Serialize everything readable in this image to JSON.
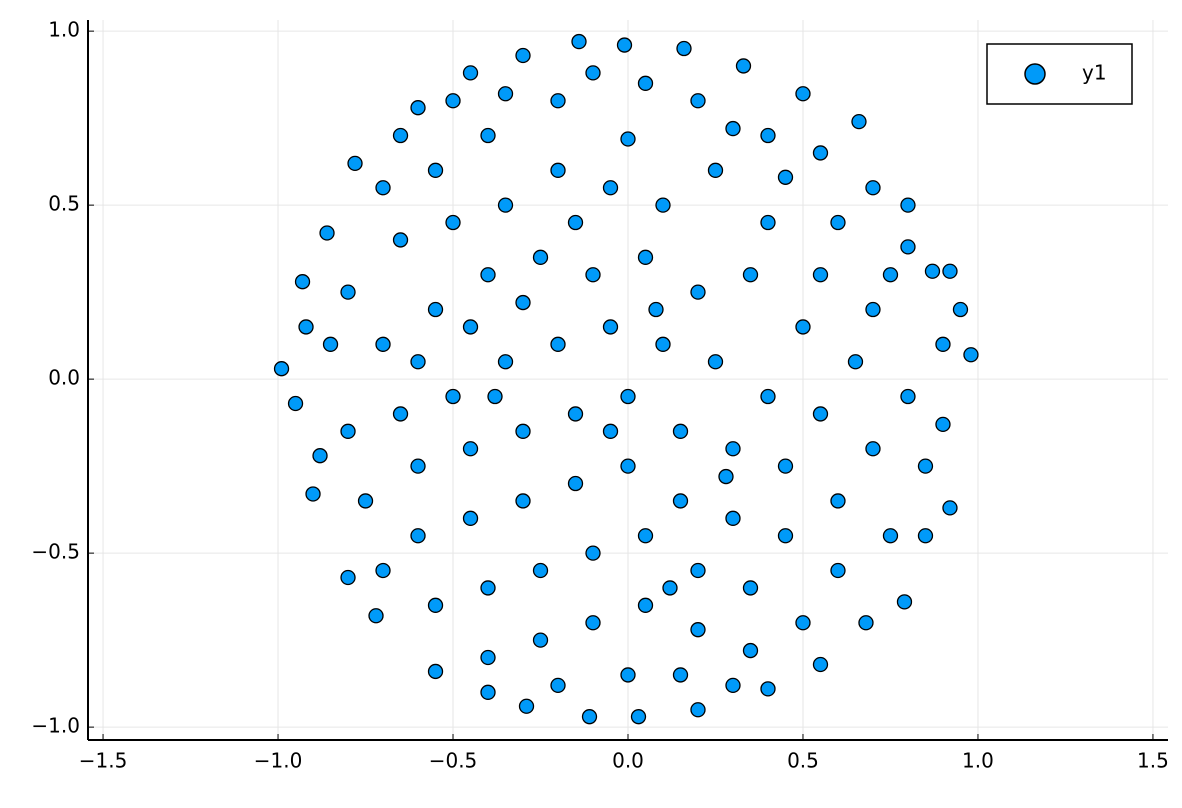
{
  "chart_data": {
    "type": "scatter",
    "xlim": [
      -1.543,
      1.543
    ],
    "ylim": [
      -1.037,
      1.032
    ],
    "xticks": [
      {
        "value": -1.5,
        "label": "−1.5"
      },
      {
        "value": -1.0,
        "label": "−1.0"
      },
      {
        "value": -0.5,
        "label": "−0.5"
      },
      {
        "value": 0,
        "label": "0.0"
      },
      0.5,
      {
        "value": 1.0,
        "label": "1.0"
      },
      1.5
    ],
    "yticks": [
      {
        "value": -1.0,
        "label": "−1.0"
      },
      {
        "value": -0.5,
        "label": "−0.5"
      },
      {
        "value": 0,
        "label": "0.0"
      },
      0.5,
      {
        "value": 1.0,
        "label": "1.0"
      }
    ],
    "grid": true,
    "legend": "top-right",
    "series": [
      {
        "name": "y1",
        "color": "#009af9",
        "x": [
          0.98,
          0.9,
          -0.99,
          -0.14,
          -0.01,
          0.03,
          -0.11,
          -0.29,
          0.8,
          0.87,
          0.79,
          -0.93,
          -0.95,
          -0.9,
          -0.8,
          -0.72,
          -0.55,
          -0.4,
          0.2,
          0.4,
          0.55,
          0.68,
          0.92,
          0.95,
          0.92,
          0.66,
          0.5,
          0.33,
          0.16,
          -0.3,
          -0.45,
          -0.6,
          -0.78,
          -0.86,
          -0.7,
          -0.55,
          -0.4,
          -0.2,
          0.0,
          0.2,
          0.4,
          0.55,
          0.7,
          0.8,
          0.7,
          0.55,
          0.4,
          0.25,
          0.1,
          -0.05,
          -0.2,
          -0.35,
          -0.5,
          -0.65,
          -0.8,
          -0.85,
          -0.7,
          -0.55,
          -0.4,
          -0.25,
          -0.1,
          0.05,
          0.2,
          0.35,
          0.5,
          0.65,
          0.8,
          0.85,
          0.7,
          0.55,
          0.4,
          0.25,
          0.1,
          -0.05,
          -0.2,
          -0.35,
          -0.5,
          -0.65,
          -0.8,
          -0.75,
          -0.6,
          -0.45,
          -0.3,
          -0.15,
          0.0,
          0.15,
          0.3,
          0.45,
          0.6,
          0.75,
          0.6,
          0.45,
          0.3,
          0.15,
          0.0,
          -0.15,
          -0.3,
          -0.45,
          -0.6,
          -0.7,
          -0.55,
          -0.4,
          -0.25,
          -0.1,
          0.05,
          0.2,
          0.35,
          0.5,
          0.35,
          0.2,
          0.05,
          -0.1,
          -0.25,
          -0.4,
          -0.2,
          0.0,
          0.15,
          0.3,
          -0.6,
          -0.45,
          -0.3,
          -0.15,
          0.05,
          -0.1,
          0.3,
          0.45,
          0.6,
          0.75,
          0.9,
          0.85,
          -0.88,
          -0.92,
          -0.65,
          -0.5,
          -0.35,
          0.08,
          -0.05,
          0.28,
          -0.38,
          0.12
        ],
        "values": [
          0.07,
          -0.13,
          0.03,
          0.97,
          0.96,
          -0.97,
          -0.97,
          -0.94,
          0.5,
          0.31,
          -0.64,
          0.28,
          -0.07,
          -0.33,
          -0.57,
          -0.68,
          -0.84,
          -0.9,
          -0.95,
          -0.89,
          -0.82,
          -0.7,
          -0.37,
          0.2,
          0.31,
          0.74,
          0.82,
          0.9,
          0.95,
          0.93,
          0.88,
          0.78,
          0.62,
          0.42,
          0.55,
          0.6,
          0.7,
          0.8,
          0.69,
          0.8,
          0.7,
          0.65,
          0.55,
          0.38,
          0.2,
          0.3,
          0.45,
          0.6,
          0.5,
          0.55,
          0.6,
          0.5,
          0.45,
          0.4,
          0.25,
          0.1,
          0.1,
          0.2,
          0.3,
          0.35,
          0.3,
          0.35,
          0.25,
          0.3,
          0.15,
          0.05,
          -0.05,
          -0.25,
          -0.2,
          -0.1,
          -0.05,
          0.05,
          0.1,
          0.15,
          0.1,
          0.05,
          -0.05,
          -0.1,
          -0.15,
          -0.35,
          -0.25,
          -0.2,
          -0.15,
          -0.1,
          -0.05,
          -0.15,
          -0.2,
          -0.25,
          -0.35,
          -0.45,
          -0.55,
          -0.45,
          -0.4,
          -0.35,
          -0.25,
          -0.3,
          -0.35,
          -0.4,
          -0.45,
          -0.55,
          -0.65,
          -0.6,
          -0.55,
          -0.5,
          -0.45,
          -0.55,
          -0.6,
          -0.7,
          -0.78,
          -0.72,
          -0.65,
          -0.7,
          -0.75,
          -0.8,
          -0.88,
          -0.85,
          -0.85,
          -0.88,
          0.05,
          0.15,
          0.22,
          0.45,
          0.85,
          0.88,
          0.72,
          0.58,
          0.45,
          0.3,
          0.1,
          -0.45,
          -0.22,
          0.15,
          0.7,
          0.8,
          0.82,
          0.2,
          -0.15,
          -0.28,
          -0.05,
          -0.6
        ]
      }
    ]
  }
}
